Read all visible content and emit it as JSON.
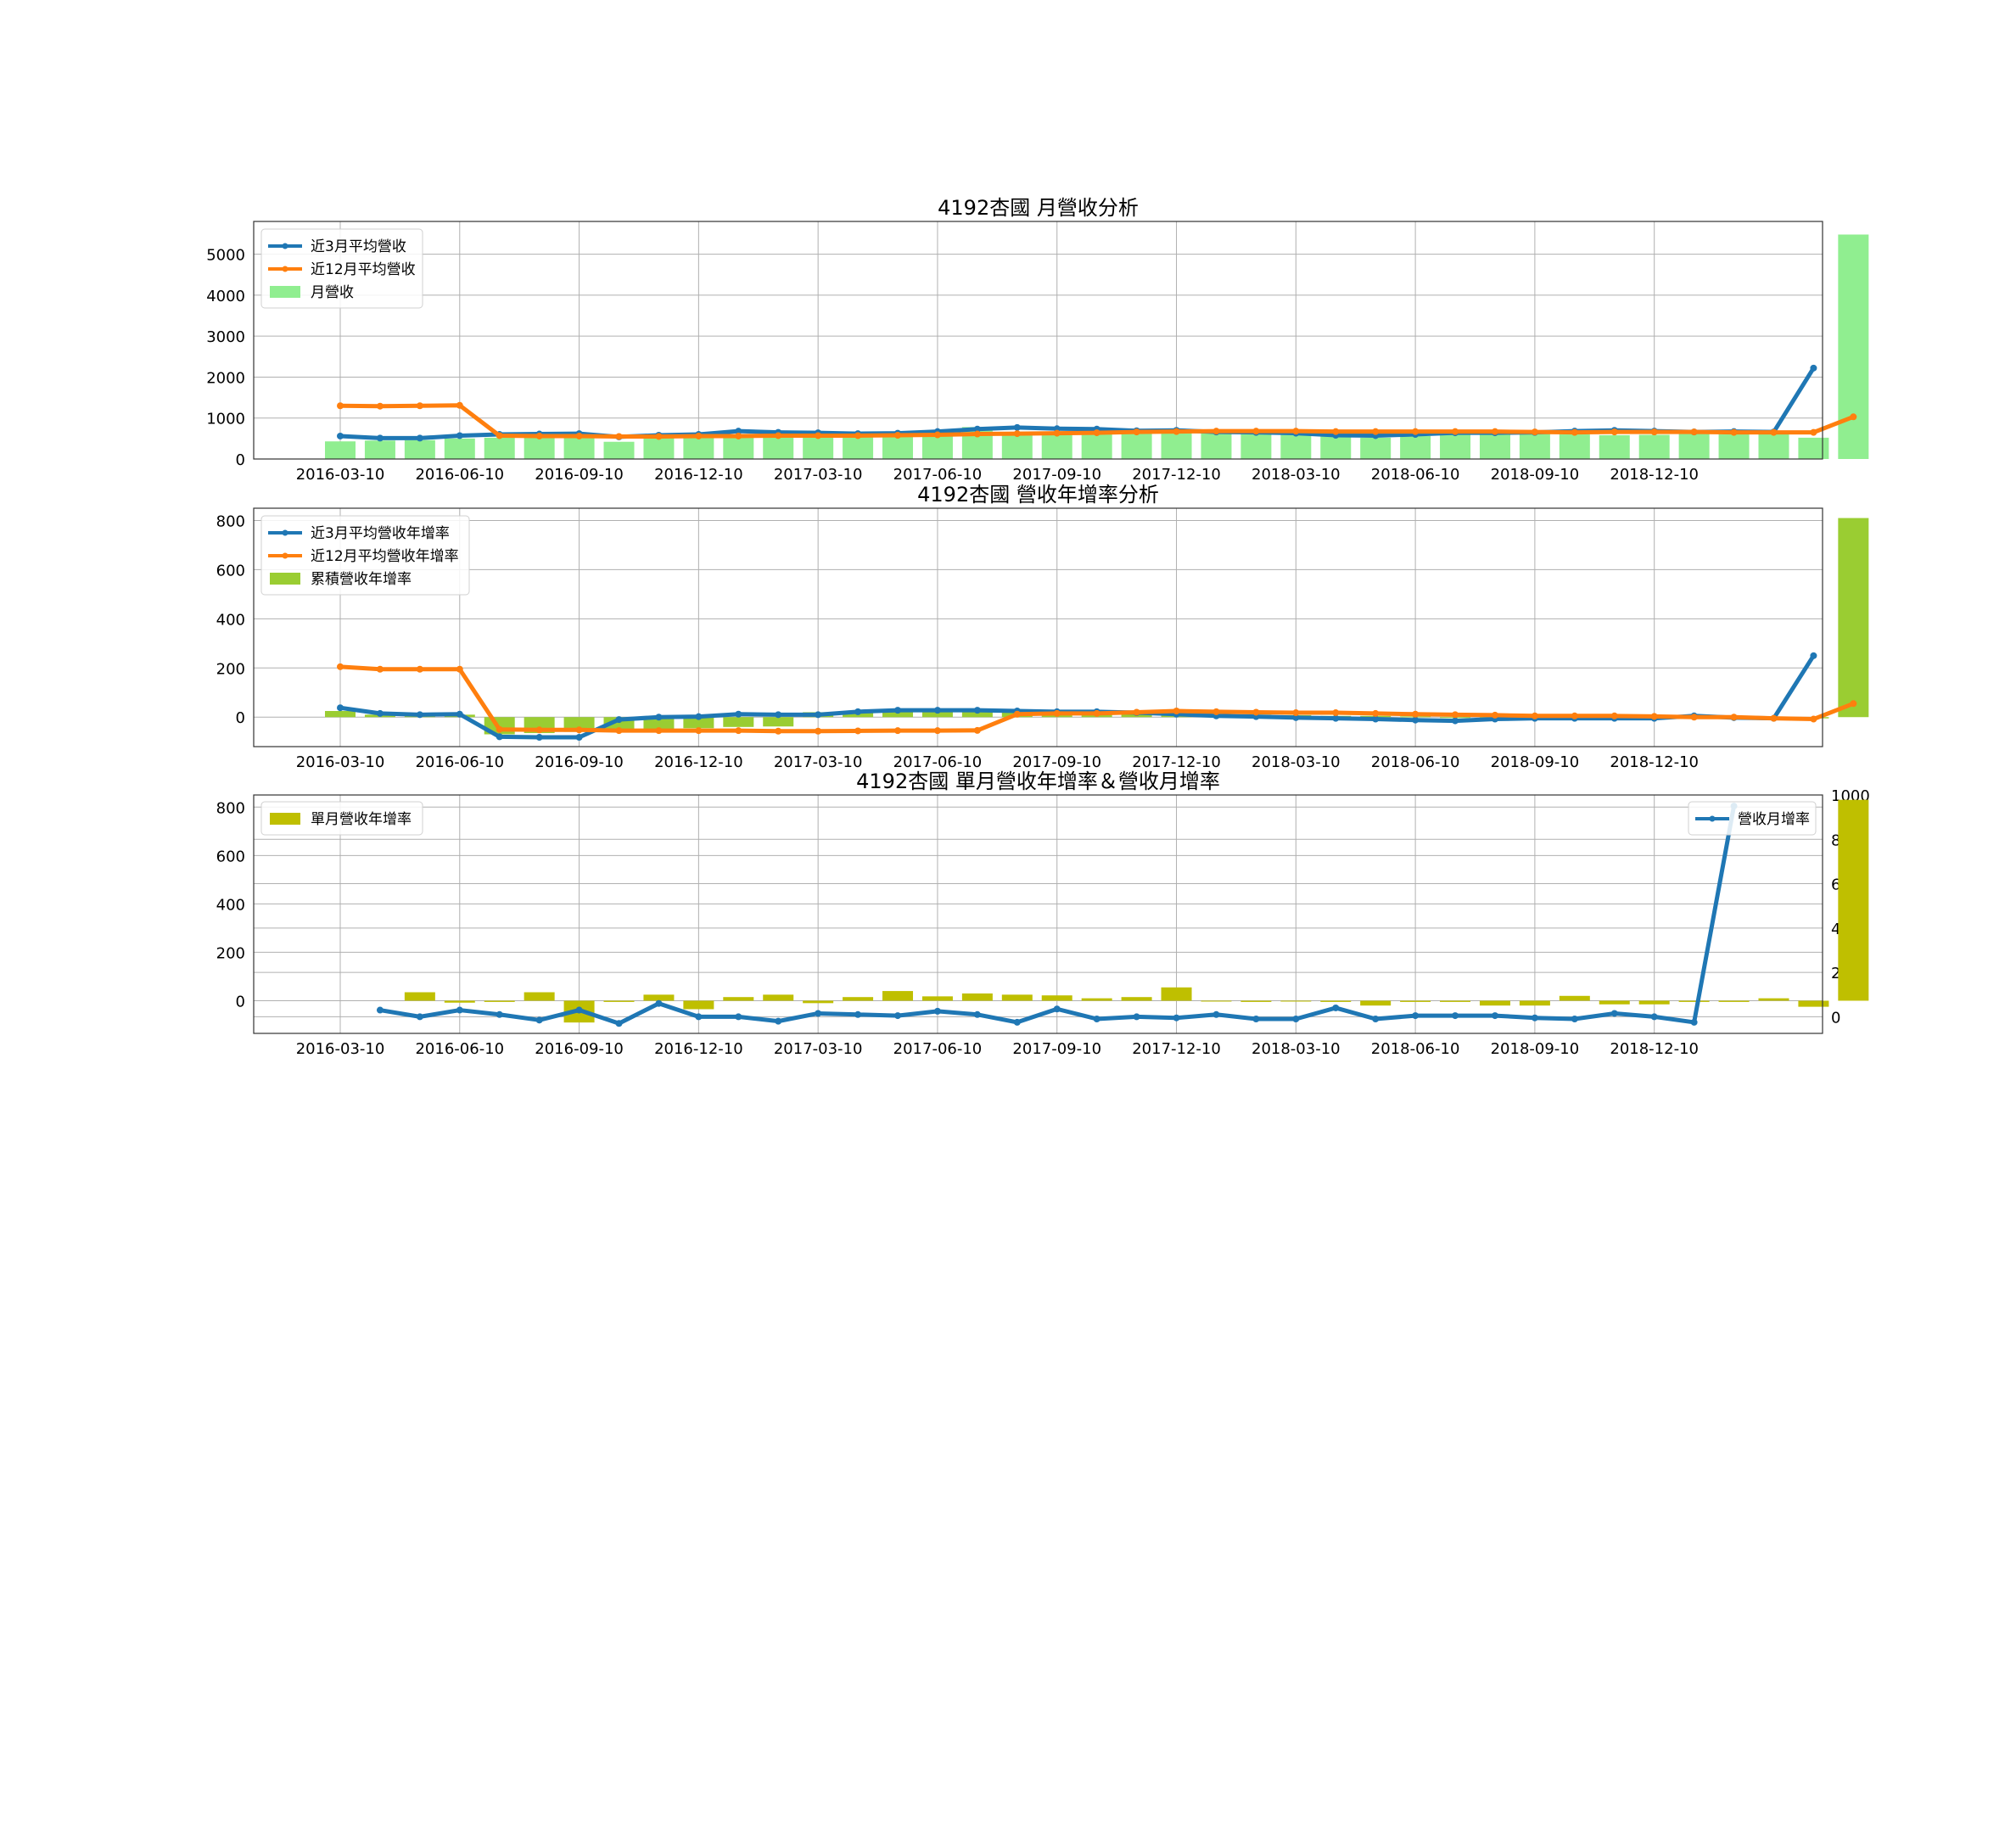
{
  "colors": {
    "blue": "#1f77b4",
    "orange": "#ff7f0e",
    "lightgreen": "#90ee90",
    "yellowgreen": "#9acd32",
    "olive": "#bfbf00",
    "grid": "#b0b0b0"
  },
  "x_ticks": [
    "2016-03-10",
    "2016-06-10",
    "2016-09-10",
    "2016-12-10",
    "2017-03-10",
    "2017-06-10",
    "2017-09-10",
    "2017-12-10",
    "2018-03-10",
    "2018-06-10",
    "2018-09-10",
    "2018-12-10"
  ],
  "chart_data": [
    {
      "type": "bar",
      "title": "4192杏國 月營收分析",
      "ylim": [
        0,
        5800
      ],
      "yticks": [
        0,
        1000,
        2000,
        3000,
        4000,
        5000
      ],
      "grid": true,
      "legend": "top-left",
      "bars": {
        "name": "月營收",
        "color": "#90ee90",
        "values": [
          430,
          450,
          460,
          500,
          520,
          530,
          530,
          420,
          600,
          620,
          610,
          600,
          620,
          600,
          600,
          650,
          780,
          640,
          660,
          670,
          680,
          650,
          640,
          640,
          630,
          600,
          520,
          560,
          600,
          620,
          610,
          600,
          580,
          590,
          610,
          600,
          620,
          520,
          5480
        ]
      },
      "series": [
        {
          "name": "近3月平均營收",
          "color": "#1f77b4",
          "start": 0,
          "values": [
            560,
            510,
            510,
            570,
            600,
            610,
            620,
            540,
            580,
            600,
            680,
            650,
            640,
            620,
            630,
            670,
            730,
            770,
            740,
            730,
            690,
            700,
            660,
            650,
            630,
            580,
            570,
            600,
            640,
            640,
            650,
            680,
            700,
            680,
            660,
            670,
            660,
            2220
          ]
        },
        {
          "name": "近12月平均營收",
          "color": "#ff7f0e",
          "start": 0,
          "values": [
            1300,
            1290,
            1300,
            1310,
            570,
            560,
            560,
            550,
            550,
            560,
            560,
            570,
            570,
            570,
            580,
            590,
            610,
            620,
            630,
            640,
            660,
            670,
            680,
            680,
            680,
            670,
            670,
            670,
            670,
            670,
            660,
            650,
            660,
            660,
            660,
            650,
            650,
            650,
            1030
          ]
        }
      ]
    },
    {
      "type": "bar",
      "title": "4192杏國 營收年增率分析",
      "ylim": [
        -120,
        850
      ],
      "yticks": [
        0,
        200,
        400,
        600,
        800
      ],
      "grid": true,
      "legend": "top-left",
      "bars": {
        "name": "累積營收年增率",
        "color": "#9acd32",
        "values": [
          25,
          10,
          8,
          10,
          -70,
          -65,
          -60,
          -55,
          -50,
          -45,
          -40,
          -38,
          20,
          25,
          28,
          30,
          25,
          20,
          18,
          18,
          15,
          15,
          12,
          10,
          8,
          5,
          5,
          3,
          0,
          -2,
          -5,
          -5,
          -5,
          -5,
          -5,
          -5,
          -5,
          -5,
          810
        ]
      },
      "series": [
        {
          "name": "近3月平均營收年增率",
          "color": "#1f77b4",
          "start": 0,
          "values": [
            38,
            15,
            10,
            12,
            -80,
            -82,
            -82,
            -10,
            0,
            2,
            12,
            10,
            10,
            22,
            28,
            28,
            28,
            25,
            22,
            22,
            18,
            12,
            5,
            2,
            -2,
            -5,
            -8,
            -12,
            -15,
            -8,
            -5,
            -5,
            -5,
            -5,
            5,
            -2,
            -5,
            250
          ]
        },
        {
          "name": "近12月平均營收年增率",
          "color": "#ff7f0e",
          "start": 0,
          "values": [
            205,
            195,
            195,
            195,
            -50,
            -52,
            -52,
            -55,
            -55,
            -55,
            -55,
            -57,
            -57,
            -56,
            -55,
            -55,
            -54,
            12,
            15,
            15,
            20,
            25,
            22,
            20,
            18,
            18,
            15,
            12,
            10,
            8,
            5,
            5,
            5,
            3,
            0,
            0,
            -5,
            -8,
            55
          ]
        }
      ]
    },
    {
      "type": "bar",
      "title": "4192杏國 單月營收年增率＆營收月增率",
      "ylim": [
        -135,
        850
      ],
      "yticks": [
        0,
        200,
        400,
        600,
        800
      ],
      "y2lim": [
        -75,
        1000
      ],
      "y2ticks": [
        0,
        200,
        400,
        600,
        800,
        1000
      ],
      "grid": true,
      "legend": "top-left (bars), top-right (line)",
      "bars": {
        "name": "單月營收年增率",
        "color": "#bfbf00",
        "values": [
          35,
          -8,
          -5,
          35,
          -90,
          -5,
          25,
          -35,
          15,
          25,
          -10,
          15,
          40,
          18,
          30,
          25,
          22,
          10,
          15,
          55,
          0,
          -5,
          0,
          -5,
          -20,
          -5,
          -5,
          -20,
          -20,
          20,
          -15,
          -15,
          -5,
          -5,
          10,
          -25,
          830
        ]
      },
      "line": {
        "name": "營收月增率",
        "color": "#1f77b4",
        "axis": "right",
        "start": 1,
        "values": [
          30,
          0,
          30,
          10,
          -15,
          30,
          -30,
          60,
          0,
          0,
          -20,
          15,
          10,
          5,
          25,
          10,
          -25,
          35,
          -10,
          0,
          -5,
          10,
          -10,
          -10,
          40,
          -10,
          5,
          5,
          5,
          -5,
          -10,
          15,
          0,
          -25,
          950
        ]
      }
    }
  ]
}
